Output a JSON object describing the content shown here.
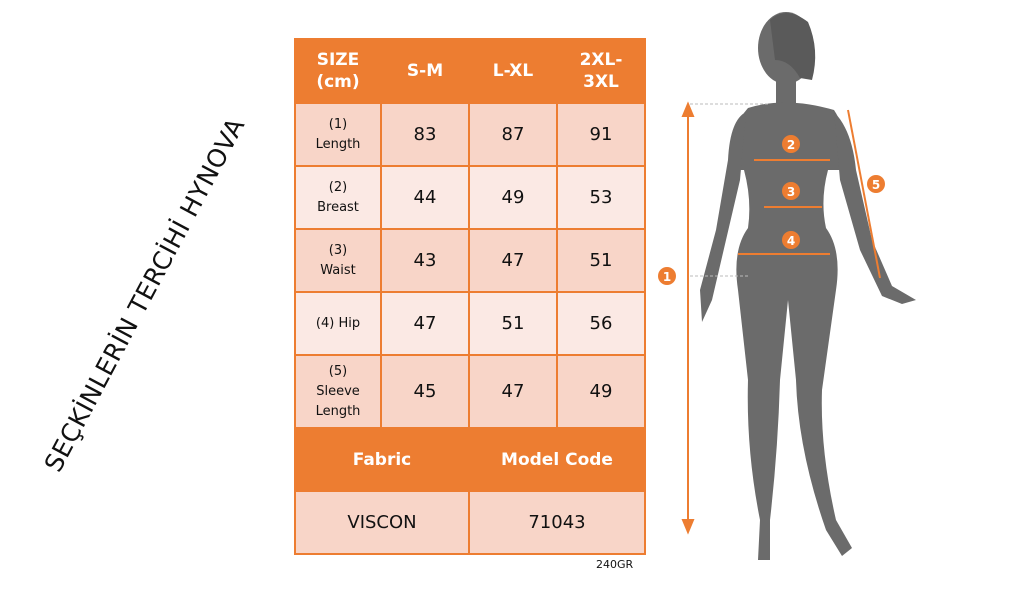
{
  "table": {
    "header": [
      "SIZE (cm)",
      "S-M",
      "L-XL",
      "2XL-3XL"
    ],
    "rows": [
      {
        "label": "(1) Length",
        "values": [
          "83",
          "87",
          "91"
        ]
      },
      {
        "label": "(2) Breast",
        "values": [
          "44",
          "49",
          "53"
        ]
      },
      {
        "label": "(3) Waist",
        "values": [
          "43",
          "47",
          "51"
        ]
      },
      {
        "label": "(4) Hip",
        "values": [
          "47",
          "51",
          "56"
        ]
      },
      {
        "label": "(5) Sleeve Length",
        "values": [
          "45",
          "47",
          "49"
        ]
      }
    ],
    "footer_header": [
      "Fabric",
      "Model Code"
    ],
    "footer_values": [
      "VISCON",
      "71043"
    ]
  },
  "weight": "240GR",
  "watermark": "SEÇKİNLERİN TERCİHİ HYNOVA",
  "markers": [
    "1",
    "2",
    "3",
    "4",
    "5"
  ],
  "colors": {
    "accent": "#ed7d31",
    "row_dark": "#f8d5c8",
    "row_light": "#fbe9e4",
    "silhouette": "#6b6b6b"
  }
}
